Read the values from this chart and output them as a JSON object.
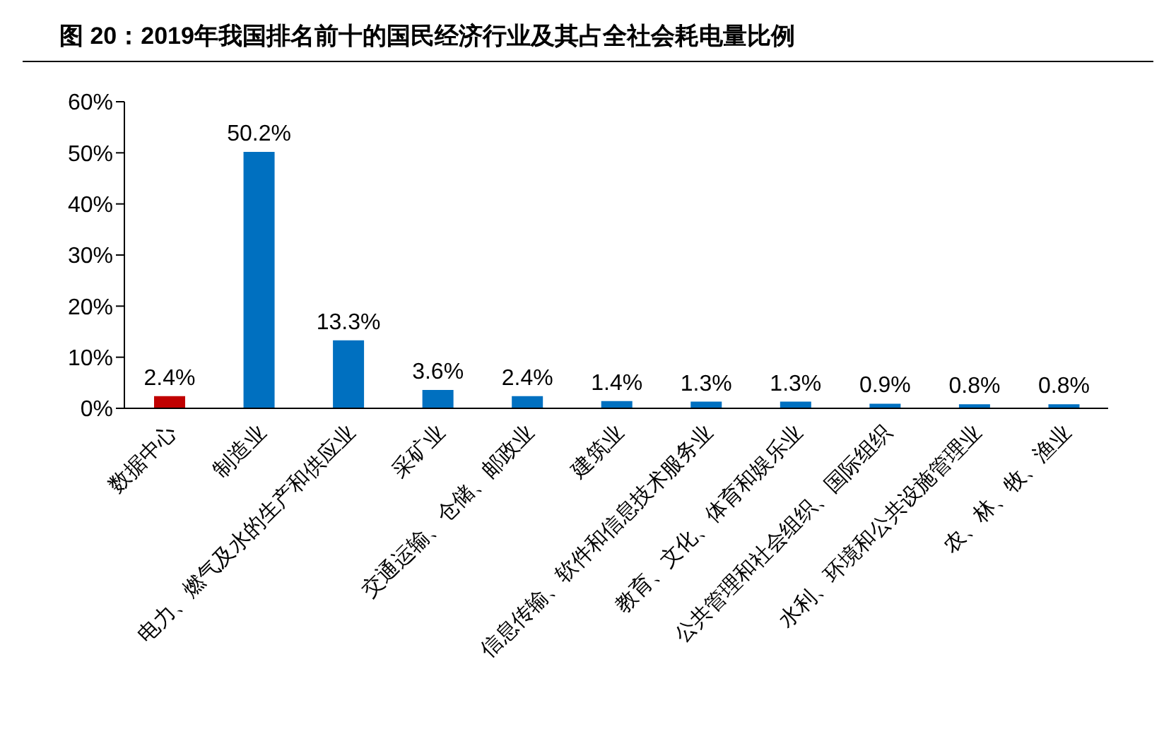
{
  "chart_data": {
    "type": "bar",
    "title": "图 20：2019年我国排名前十的国民经济行业及其占全社会耗电量比例",
    "categories": [
      "数据中心",
      "制造业",
      "电力、燃气及水的生产和供应业",
      "采矿业",
      "交通运输、仓储、邮政业",
      "建筑业",
      "信息传输、软件和信息技术服务业",
      "教育、文化、体育和娱乐业",
      "公共管理和社会组织、国际组织",
      "水利、环境和公共设施管理业",
      "农、林、牧、渔业"
    ],
    "values": [
      2.4,
      50.2,
      13.3,
      3.6,
      2.4,
      1.4,
      1.3,
      1.3,
      0.9,
      0.8,
      0.8
    ],
    "colors": [
      "#c00000",
      "#0070c0",
      "#0070c0",
      "#0070c0",
      "#0070c0",
      "#0070c0",
      "#0070c0",
      "#0070c0",
      "#0070c0",
      "#0070c0",
      "#0070c0"
    ],
    "value_labels": [
      "2.4%",
      "50.2%",
      "13.3%",
      "3.6%",
      "2.4%",
      "1.4%",
      "1.3%",
      "1.3%",
      "0.9%",
      "0.8%",
      "0.8%"
    ],
    "ylim": [
      0,
      60
    ],
    "yticks": [
      {
        "value": 0,
        "label": "0%"
      },
      {
        "value": 10,
        "label": "10%"
      },
      {
        "value": 20,
        "label": "20%"
      },
      {
        "value": 30,
        "label": "30%"
      },
      {
        "value": 40,
        "label": "40%"
      },
      {
        "value": 50,
        "label": "50%"
      },
      {
        "value": 60,
        "label": "60%"
      }
    ],
    "grid": false,
    "legend": false
  }
}
